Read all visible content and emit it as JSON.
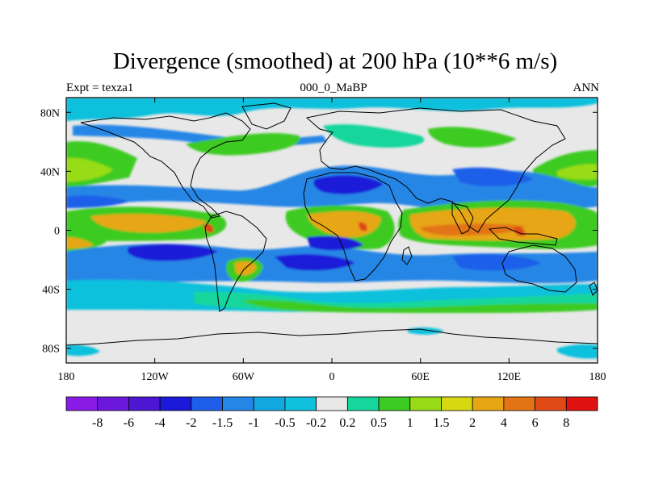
{
  "title": "Divergence (smoothed) at 200 hPa (10**6 m/s)",
  "left_label": "Expt = texza1",
  "center_label": "000_0_MaBP",
  "right_label": "ANN",
  "y_ticks": [
    {
      "lat": 80,
      "label": "80N"
    },
    {
      "lat": 40,
      "label": "40N"
    },
    {
      "lat": 0,
      "label": "0"
    },
    {
      "lat": -40,
      "label": "40S"
    },
    {
      "lat": -80,
      "label": "80S"
    }
  ],
  "x_ticks": [
    {
      "lon": -180,
      "label": "180"
    },
    {
      "lon": -120,
      "label": "120W"
    },
    {
      "lon": -60,
      "label": "60W"
    },
    {
      "lon": 0,
      "label": "0"
    },
    {
      "lon": 60,
      "label": "60E"
    },
    {
      "lon": 120,
      "label": "120E"
    },
    {
      "lon": 180,
      "label": "180"
    }
  ],
  "colorbar": {
    "colors": [
      "#8a1ae6",
      "#6c18dc",
      "#4c16d2",
      "#1a1ad8",
      "#1e5ee8",
      "#2586e6",
      "#13a8e0",
      "#11c0dc",
      "#e8e8e8",
      "#16d69c",
      "#3ccb22",
      "#98dc18",
      "#d8d812",
      "#e6a614",
      "#e27416",
      "#e04a16",
      "#e01212"
    ],
    "labels": [
      "-8",
      "-6",
      "-4",
      "-2",
      "-1.5",
      "-1",
      "-0.5",
      "-0.2",
      "0.2",
      "0.5",
      "1",
      "1.5",
      "2",
      "4",
      "6",
      "8"
    ]
  },
  "colors": {
    "background": "#e8e8e8",
    "coast": "#000000"
  }
}
